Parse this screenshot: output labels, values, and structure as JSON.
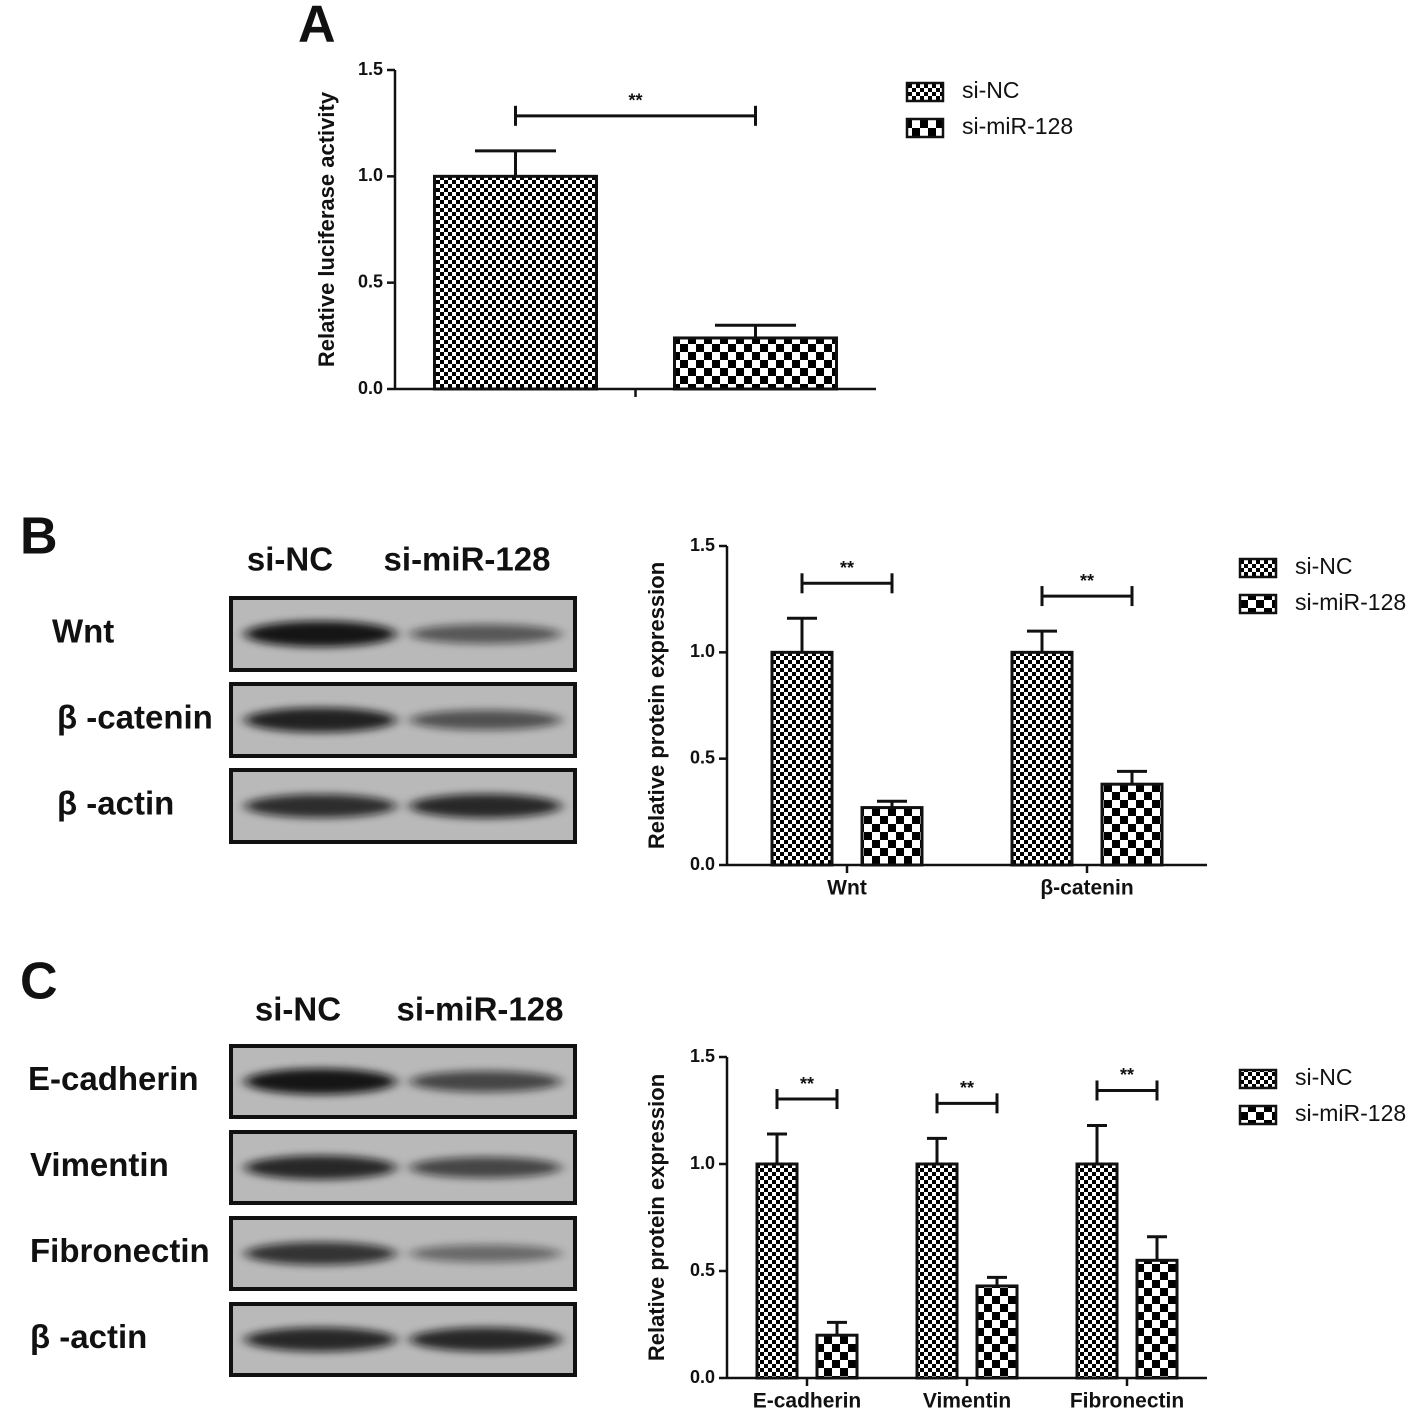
{
  "panel_labels": [
    "A",
    "B",
    "C"
  ],
  "blots": [
    {
      "lanes": [
        "si-NC",
        "si-miR-128"
      ],
      "rows": [
        "Wnt",
        "β -catenin",
        "β -actin"
      ]
    },
    {
      "lanes": [
        "si-NC",
        "si-miR-128"
      ],
      "rows": [
        "E-cadherin",
        "Vimentin",
        "Fibronectin",
        "β -actin"
      ]
    }
  ],
  "chart_data": [
    {
      "type": "bar",
      "ylabel": "Relative luciferase activity",
      "categories": [
        null
      ],
      "series": [
        {
          "name": "si-NC",
          "color": "#000000",
          "pattern": "fine",
          "values": [
            1.0
          ],
          "errors": [
            0.12
          ]
        },
        {
          "name": "si-miR-128",
          "color": "#000000",
          "pattern": "coarse",
          "values": [
            0.24
          ],
          "errors": [
            0.06
          ]
        }
      ],
      "significance": [
        "**"
      ],
      "ylim": [
        0,
        1.5
      ],
      "yticks": [
        {
          "value": 0,
          "label": "0.0"
        },
        {
          "value": 0.5,
          "label": "0.5"
        },
        {
          "value": 1,
          "label": "1.0"
        },
        {
          "value": 1.5,
          "label": "1.5"
        }
      ],
      "legend": "top-right"
    },
    {
      "type": "bar",
      "ylabel": "Relative protein expression",
      "categories": [
        "Wnt",
        "β-catenin"
      ],
      "series": [
        {
          "name": "si-NC",
          "color": "#000000",
          "pattern": "fine",
          "values": [
            1.0,
            1.0
          ],
          "errors": [
            0.16,
            0.1
          ]
        },
        {
          "name": "si-miR-128",
          "color": "#000000",
          "pattern": "coarse",
          "values": [
            0.27,
            0.38
          ],
          "errors": [
            0.03,
            0.06
          ]
        }
      ],
      "significance": [
        "**",
        "**"
      ],
      "ylim": [
        0,
        1.5
      ],
      "yticks": [
        {
          "value": 0,
          "label": "0.0"
        },
        {
          "value": 0.5,
          "label": "0.5"
        },
        {
          "value": 1,
          "label": "1.0"
        },
        {
          "value": 1.5,
          "label": "1.5"
        }
      ],
      "legend": "top-right"
    },
    {
      "type": "bar",
      "ylabel": "Relative protein expression",
      "categories": [
        "E-cadherin",
        "Vimentin",
        "Fibronectin"
      ],
      "series": [
        {
          "name": "si-NC",
          "color": "#000000",
          "pattern": "fine",
          "values": [
            1.0,
            1.0,
            1.0
          ],
          "errors": [
            0.14,
            0.12,
            0.18
          ]
        },
        {
          "name": "si-miR-128",
          "color": "#000000",
          "pattern": "coarse",
          "values": [
            0.2,
            0.43,
            0.55
          ],
          "errors": [
            0.06,
            0.04,
            0.11
          ]
        }
      ],
      "significance": [
        "**",
        "**",
        "**"
      ],
      "ylim": [
        0,
        1.5
      ],
      "yticks": [
        {
          "value": 0,
          "label": "0.0"
        },
        {
          "value": 0.5,
          "label": "0.5"
        },
        {
          "value": 1,
          "label": "1.0"
        },
        {
          "value": 1.5,
          "label": "1.5"
        }
      ],
      "legend": "top-right"
    }
  ]
}
